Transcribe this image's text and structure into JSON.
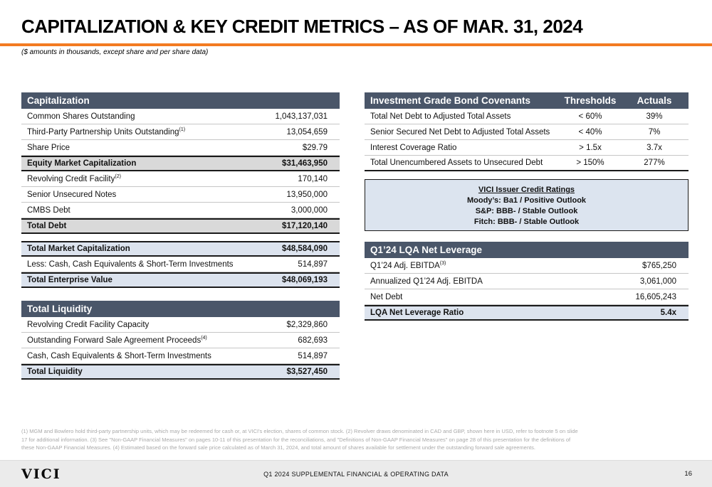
{
  "title": "CAPITALIZATION & KEY CREDIT METRICS – AS OF MAR. 31, 2024",
  "subtitle": "($ amounts in thousands, except share and per share data)",
  "colors": {
    "accent_orange": "#F37B21",
    "header_slate": "#4A5669",
    "row_gray": "#D9D9D9",
    "row_blue": "#DCE3EE"
  },
  "capitalization": {
    "title": "Capitalization",
    "rows": [
      {
        "label": "Common Shares Outstanding",
        "value": "1,043,137,031"
      },
      {
        "label": "Third-Party Partnership Units Outstanding",
        "sup": "(1)",
        "value": "13,054,659"
      },
      {
        "label": "Share Price",
        "value": "$29.79"
      },
      {
        "label": "Equity Market Capitalization",
        "value": "$31,463,950"
      },
      {
        "label": "Revolving Credit Facility",
        "sup": "(2)",
        "value": "170,140"
      },
      {
        "label": "Senior Unsecured Notes",
        "value": "13,950,000"
      },
      {
        "label": "CMBS Debt",
        "value": "3,000,000"
      },
      {
        "label": "Total Debt",
        "value": "$17,120,140"
      }
    ],
    "summary": [
      {
        "label": "Total Market Capitalization",
        "value": "$48,584,090"
      },
      {
        "label": "Less: Cash, Cash Equivalents & Short-Term Investments",
        "value": "514,897"
      },
      {
        "label": "Total Enterprise Value",
        "value": "$48,069,193"
      }
    ]
  },
  "liquidity": {
    "title": "Total Liquidity",
    "rows": [
      {
        "label": "Revolving Credit Facility Capacity",
        "value": "$2,329,860"
      },
      {
        "label": "Outstanding Forward Sale Agreement Proceeds",
        "sup": "(4)",
        "value": "682,693"
      },
      {
        "label": "Cash, Cash Equivalents & Short-Term Investments",
        "value": "514,897"
      },
      {
        "label": "Total Liquidity",
        "value": "$3,527,450"
      }
    ]
  },
  "covenants": {
    "title": "Investment Grade Bond Covenants",
    "col_thresholds": "Thresholds",
    "col_actuals": "Actuals",
    "rows": [
      {
        "label": "Total Net Debt to Adjusted Total Assets",
        "threshold": "< 60%",
        "actual": "39%"
      },
      {
        "label": "Senior Secured Net Debt to Adjusted Total Assets",
        "threshold": "< 40%",
        "actual": "7%"
      },
      {
        "label": "Interest Coverage Ratio",
        "threshold": "> 1.5x",
        "actual": "3.7x"
      },
      {
        "label": "Total Unencumbered Assets to Unsecured Debt",
        "threshold": "> 150%",
        "actual": "277%"
      }
    ]
  },
  "ratings": {
    "title": "VICI Issuer Credit Ratings",
    "lines": [
      "Moody’s: Ba1 / Positive Outlook",
      "S&P: BBB- / Stable Outlook",
      "Fitch: BBB- / Stable Outlook"
    ]
  },
  "lqa": {
    "title": "Q1’24 LQA Net Leverage",
    "rows": [
      {
        "label": "Q1’24 Adj. EBITDA",
        "sup": "(3)",
        "value": "$765,250"
      },
      {
        "label": "Annualized Q1’24 Adj. EBITDA",
        "value": "3,061,000"
      },
      {
        "label": "Net Debt",
        "value": "16,605,243"
      },
      {
        "label": "LQA Net Leverage Ratio",
        "value": "5.4x"
      }
    ]
  },
  "footnotes": {
    "line1": "(1) MGM and Bowlero hold third-party partnership units, which may be redeemed for cash or, at VICI's election, shares of common stock. (2) Revolver draws denominated in CAD and GBP, shown here in USD, refer to footnote 5 on slide",
    "line2": "17 for additional information. (3) See \"Non-GAAP Financial Measures\" on pages 10-11 of this presentation for the reconciliations, and \"Definitions of Non-GAAP Financial Measures\" on page 28 of this presentation for the definitions of",
    "line3": "these Non-GAAP Financial Measures. (4) Estimated based on the forward sale price calculated as of March 31, 2024, and total amount of shares available for settlement under the outstanding forward sale agreements."
  },
  "footer": {
    "logo": "VICI",
    "center": "Q1 2024 SUPPLEMENTAL FINANCIAL & OPERATING DATA",
    "page": "16"
  }
}
